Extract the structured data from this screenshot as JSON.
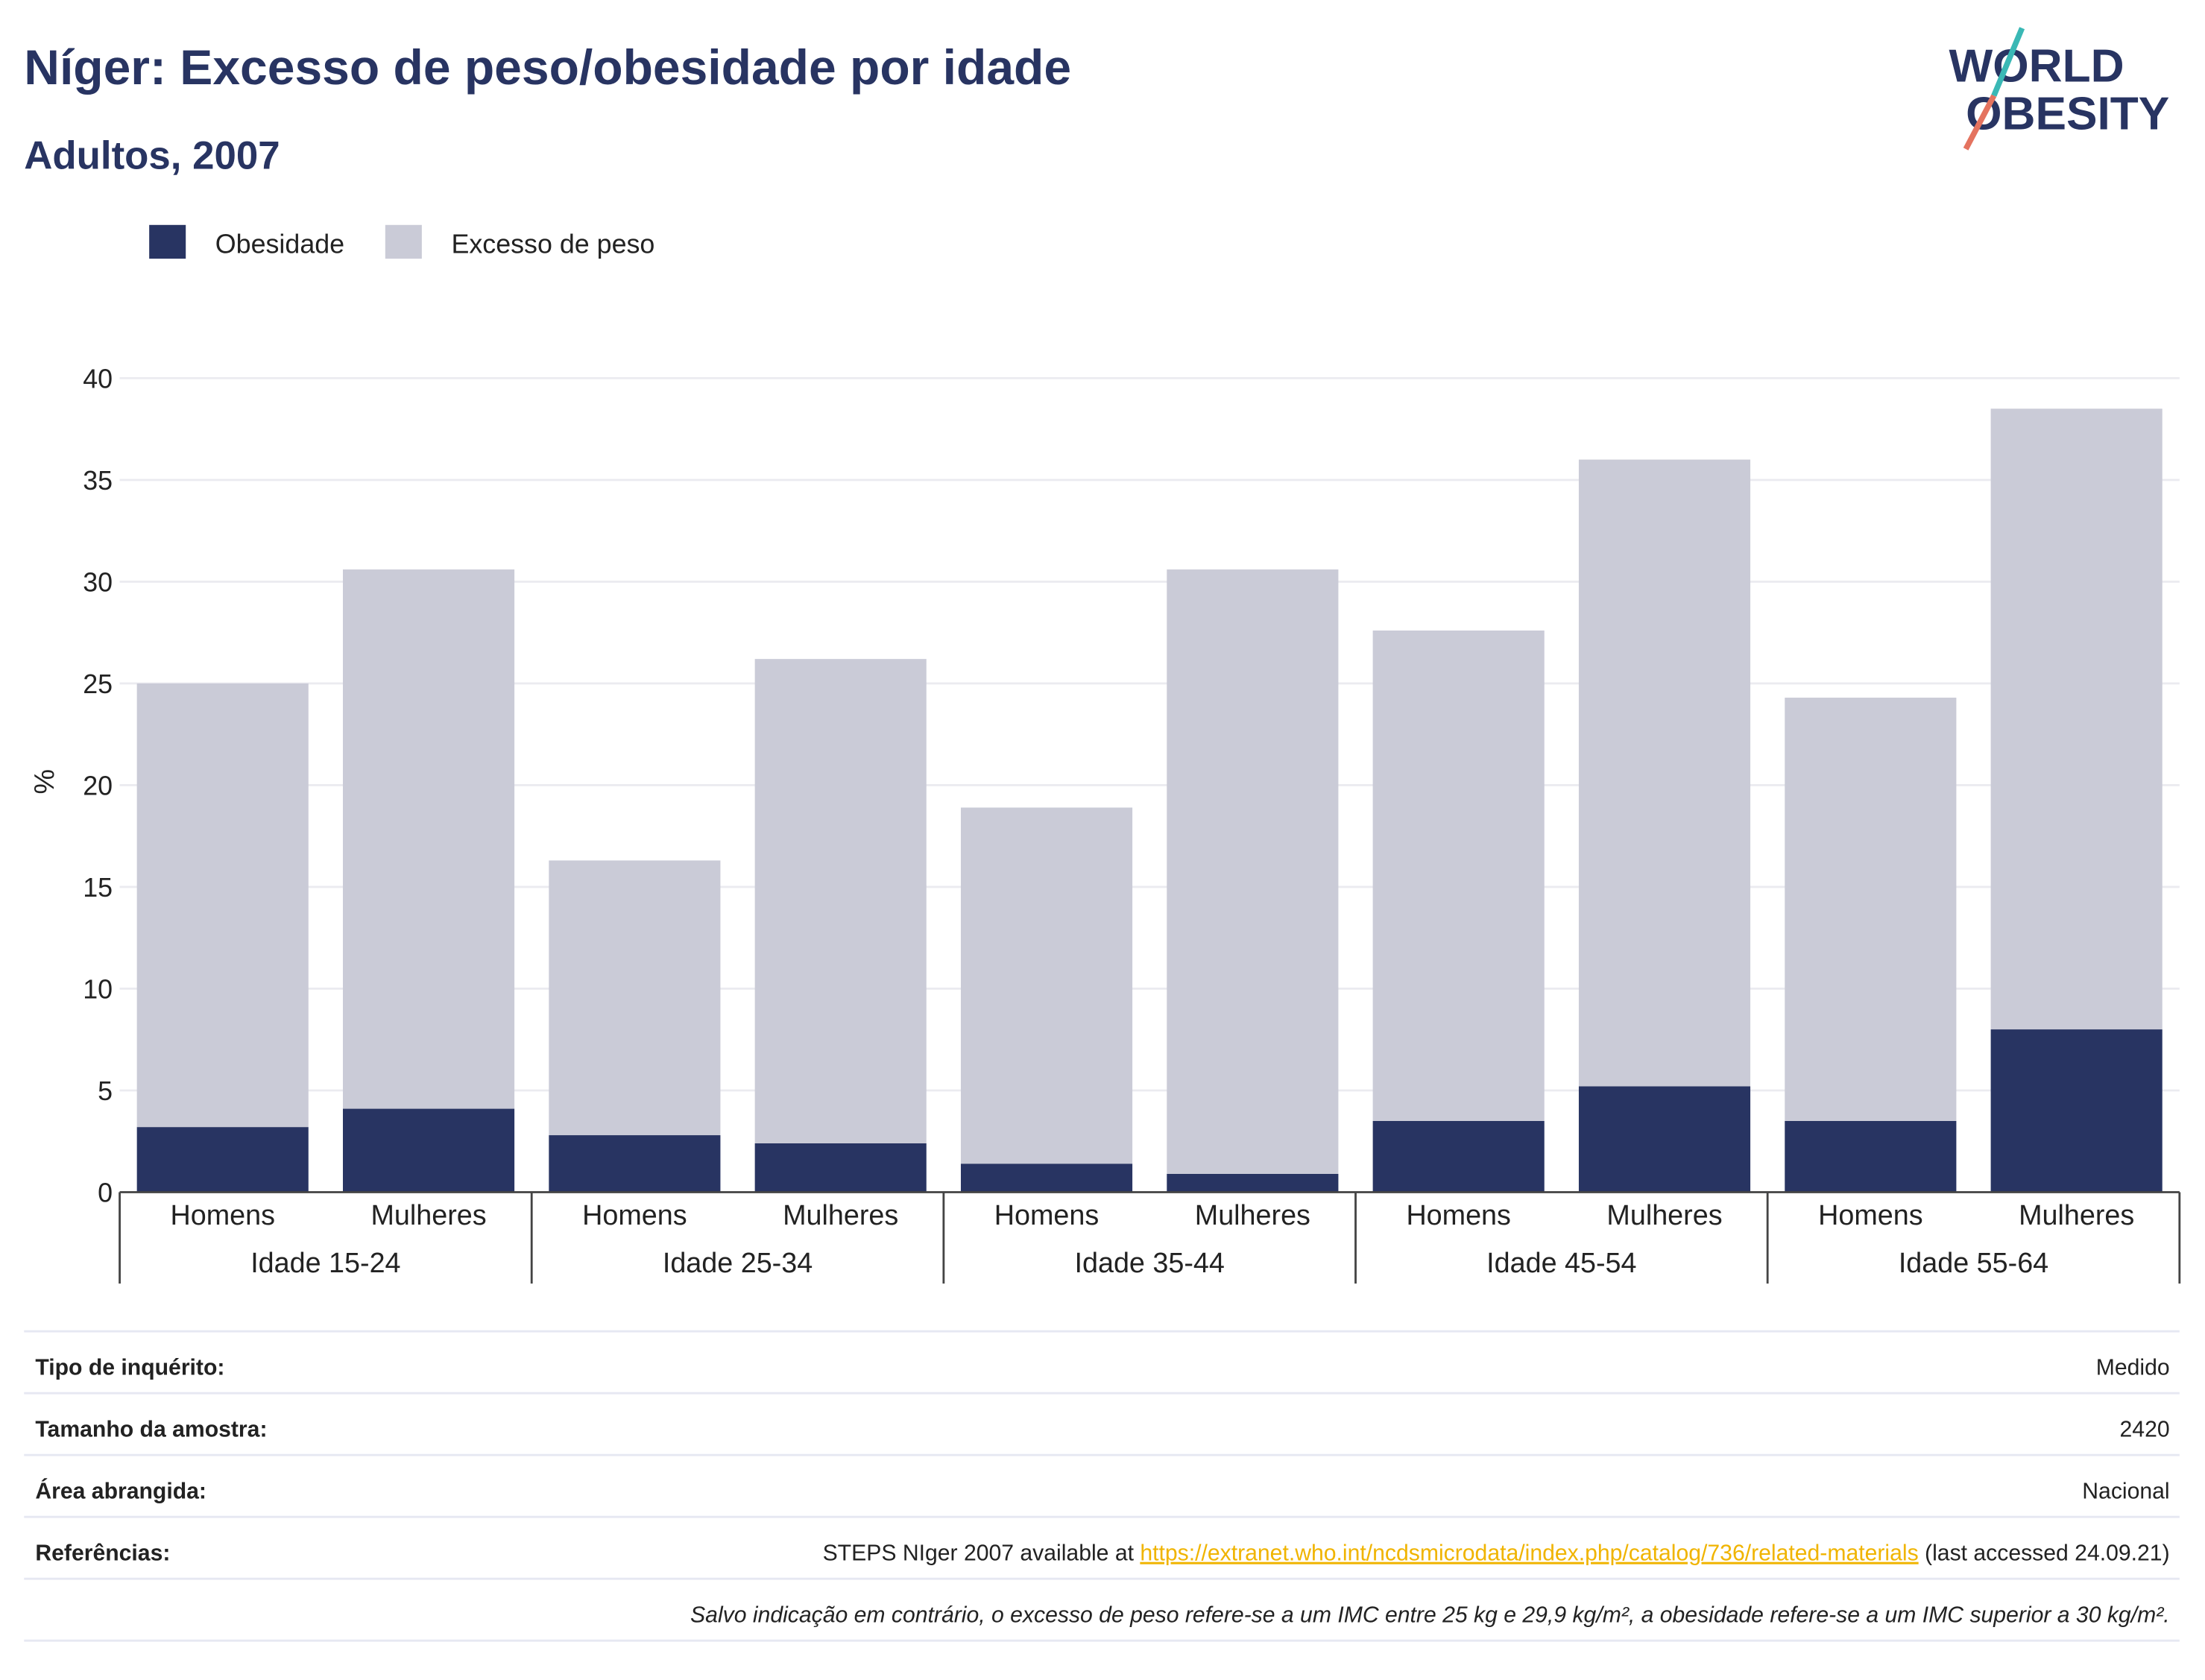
{
  "chart_data": {
    "type": "bar",
    "stacked": true,
    "title": "Níger: Excesso de peso/obesidade por idade",
    "subtitle": "Adultos, 2007",
    "y_label": "%",
    "logo": [
      "WORLD",
      "OBESITY"
    ],
    "categories": [
      "Homens",
      "Mulheres",
      "Homens",
      "Mulheres",
      "Homens",
      "Mulheres",
      "Homens",
      "Mulheres",
      "Homens",
      "Mulheres"
    ],
    "groups": [
      "Idade 15-24",
      "Idade 25-34",
      "Idade 35-44",
      "Idade 45-54",
      "Idade 55-64"
    ],
    "series": [
      {
        "name": "Obesidade",
        "color": "#283462",
        "values": [
          3.2,
          4.1,
          2.8,
          2.4,
          1.4,
          0.9,
          3.5,
          5.2,
          3.5,
          8.0
        ]
      },
      {
        "name": "Excesso de peso",
        "color": "#cacbd7",
        "values": [
          21.8,
          26.5,
          13.5,
          23.8,
          17.5,
          29.7,
          24.1,
          30.8,
          20.8,
          30.5
        ]
      }
    ],
    "ylim": [
      0,
      40
    ],
    "yticks": [
      0,
      5,
      10,
      15,
      20,
      25,
      30,
      35,
      40
    ],
    "grid": true
  },
  "table": {
    "rows": [
      [
        "Tipo de inquérito:",
        "Medido"
      ],
      [
        "Tamanho da amostra:",
        "2420"
      ],
      [
        "Área abrangida:",
        "Nacional"
      ],
      [
        "Referências:",
        "STEPS NIger 2007 available at ",
        "https://extranet.who.int/ncdsmicrodata/index.php/catalog/736/related-materials",
        " (last accessed 24.09.21)"
      ]
    ],
    "note": "Salvo indicação em contrário, o excesso de peso refere-se a um IMC entre 25 kg e 29,9 kg/m², a obesidade refere-se a um IMC superior a 30 kg/m²."
  }
}
